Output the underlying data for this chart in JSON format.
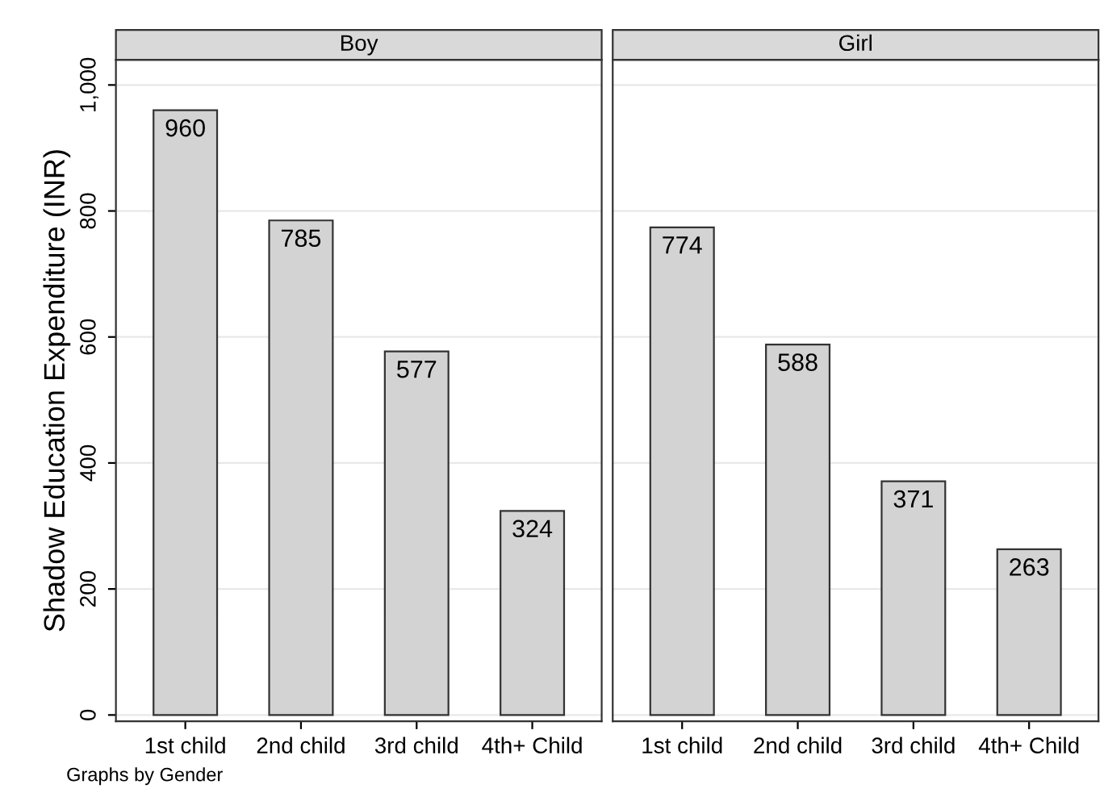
{
  "chart_data": [
    {
      "type": "bar",
      "title": "Boy",
      "ylabel": "Shadow Education Expenditure (INR)",
      "categories": [
        "1st child",
        "2nd child",
        "3rd child",
        "4th+ Child"
      ],
      "values": [
        960,
        785,
        577,
        324
      ],
      "color": "#d3d3d3",
      "data_labels": true,
      "ylim": [
        -10,
        1040
      ],
      "yticks": [
        0,
        200,
        400,
        600,
        800,
        {
          "value": 1000,
          "label": "1,000"
        }
      ],
      "grid": "y",
      "annotations": [
        "Graphs by Gender"
      ]
    },
    {
      "type": "bar",
      "title": "Girl",
      "categories": [
        "1st child",
        "2nd child",
        "3rd child",
        "4th+ Child"
      ],
      "values": [
        774,
        588,
        371,
        263
      ],
      "color": "#d3d3d3",
      "data_labels": true,
      "ylim": [
        -10,
        1040
      ],
      "yticks": [
        0,
        200,
        400,
        600,
        800,
        1000
      ],
      "grid": "y",
      "tick_labels": "x"
    }
  ]
}
